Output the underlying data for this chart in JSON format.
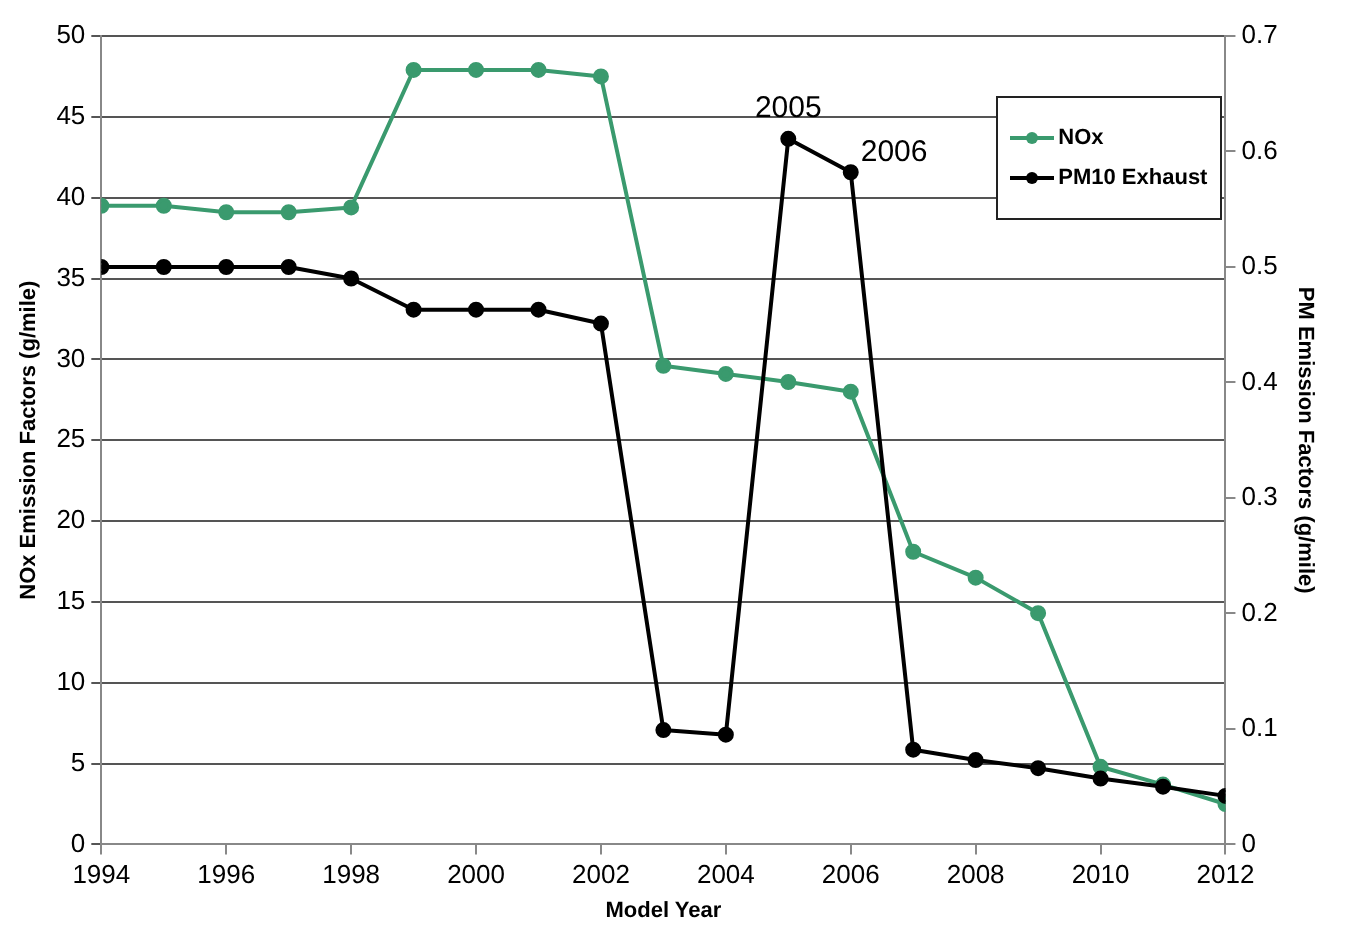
{
  "chart_data": {
    "type": "line",
    "xlabel": "Model Year",
    "ylabel": "NOx Emission Factors (g/mile)",
    "y2label": "PM Emission Factors (g/mile)",
    "x": [
      1994,
      1995,
      1996,
      1997,
      1998,
      1999,
      2000,
      2001,
      2002,
      2003,
      2004,
      2005,
      2006,
      2007,
      2008,
      2009,
      2010,
      2011,
      2012
    ],
    "series": [
      {
        "name": "NOx",
        "color": "#3a9a6e",
        "values": [
          39.5,
          39.5,
          39.1,
          39.1,
          39.4,
          47.9,
          47.9,
          47.9,
          47.5,
          29.6,
          29.1,
          28.6,
          28.0,
          18.1,
          16.5,
          14.3,
          4.8,
          3.7,
          2.5
        ]
      },
      {
        "name": "PM10 Exhaust",
        "color": "#000000",
        "axis": "y2",
        "values": [
          0.5,
          0.5,
          0.5,
          0.5,
          0.49,
          0.463,
          0.463,
          0.463,
          0.451,
          0.099,
          0.095,
          0.611,
          0.582,
          0.082,
          0.073,
          0.066,
          0.057,
          0.05,
          0.042
        ]
      }
    ],
    "xlim": [
      1994,
      2012
    ],
    "xticks": [
      1994,
      1996,
      1998,
      2000,
      2002,
      2004,
      2006,
      2008,
      2010,
      2012
    ],
    "ylim": [
      0,
      50
    ],
    "yticks": [
      0,
      5,
      10,
      15,
      20,
      25,
      30,
      35,
      40,
      45,
      50
    ],
    "y2lim": [
      0,
      0.7
    ],
    "y2ticks": [
      0,
      0.1,
      0.2,
      0.3,
      0.4,
      0.5,
      0.6,
      0.7
    ],
    "annotations": [
      {
        "text": "2005",
        "x": 2005,
        "y": 43.6
      },
      {
        "text": "2006",
        "x": 2006,
        "y": 41.6
      }
    ],
    "grid": "y",
    "legend": "top right",
    "marker": "circle",
    "line_style": "solid"
  }
}
